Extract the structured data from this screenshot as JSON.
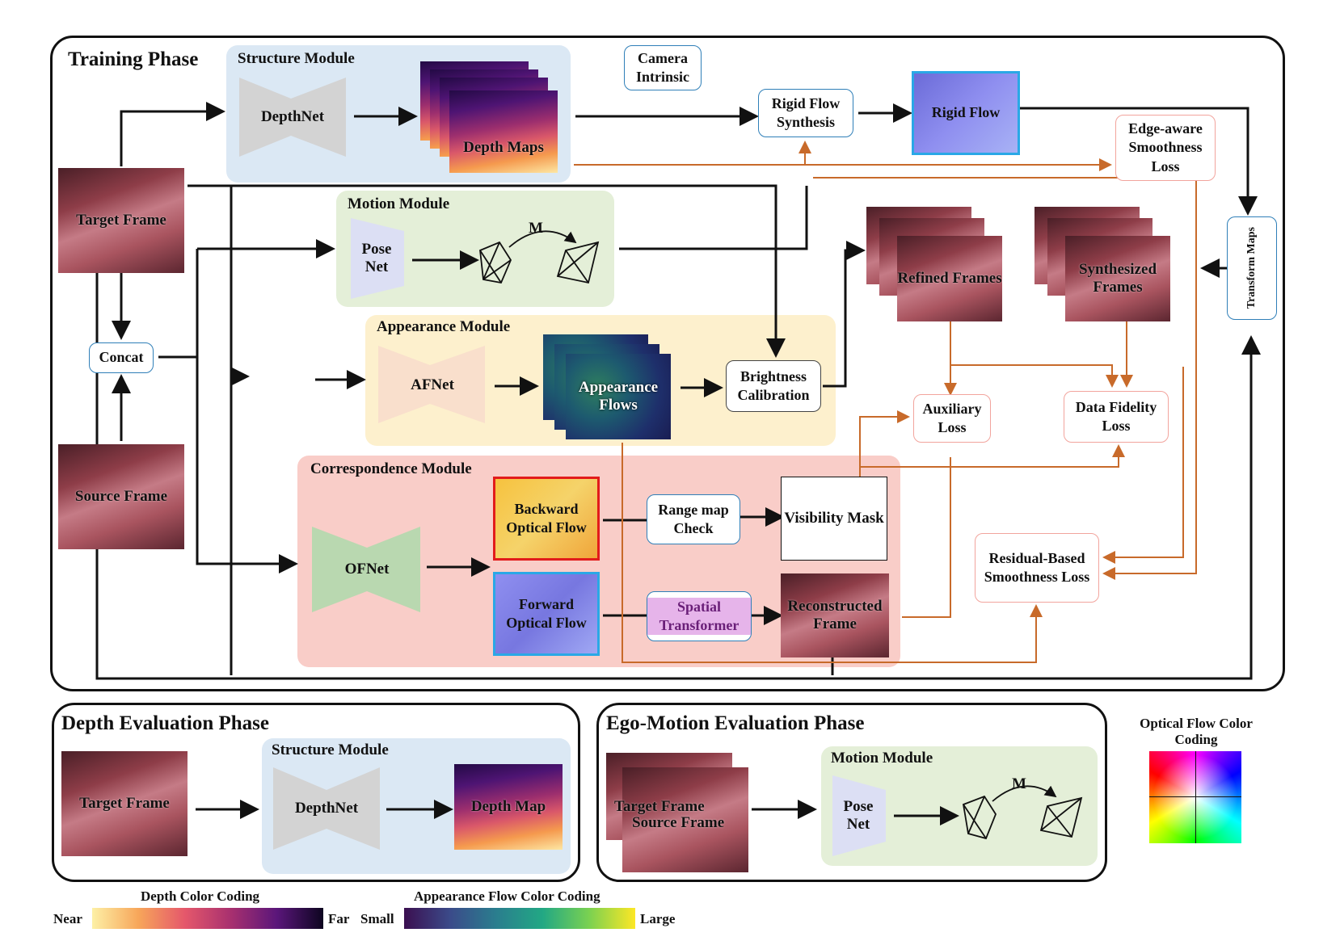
{
  "training": {
    "title": "Training Phase",
    "structure": {
      "title": "Structure Module",
      "net": "DepthNet",
      "output": "Depth Maps"
    },
    "camera": "Camera Intrinsic",
    "rigid_synth": "Rigid Flow Synthesis",
    "rigid_flow": "Rigid Flow",
    "edge_loss": "Edge-aware Smoothness Loss",
    "target": "Target Frame",
    "source": "Source Frame",
    "concat1": "Concat",
    "motion": {
      "title": "Motion Module",
      "net": "Pose Net",
      "m": "M"
    },
    "refined": "Refined Frames",
    "synth": "Synthesized Frames",
    "transform": "Transform Maps",
    "concat2": "Concat",
    "appearance": {
      "title": "Appearance Module",
      "net": "AFNet",
      "output": "Appearance Flows"
    },
    "brightness": "Brightness Calibration",
    "aux_loss": "Auxiliary Loss",
    "fidelity_loss": "Data Fidelity Loss",
    "correspondence": {
      "title": "Correspondence Module",
      "net": "OFNet",
      "backward": "Backward Optical Flow",
      "forward": "Forward Optical Flow",
      "range": "Range map Check",
      "visibility": "Visibility Mask",
      "spatial": "Spatial Transformer",
      "recon": "Reconstructed Frame"
    },
    "residual_loss": "Residual-Based Smoothness Loss"
  },
  "depth_eval": {
    "title": "Depth Evaluation Phase",
    "input": "Target Frame",
    "module": "Structure Module",
    "net": "DepthNet",
    "output": "Depth Map"
  },
  "ego_eval": {
    "title": "Ego-Motion Evaluation Phase",
    "input1": "Target Frame",
    "input2": "Source Frame",
    "module": "Motion Module",
    "net": "Pose Net",
    "m": "M"
  },
  "legend": {
    "of_title": "Optical Flow Color Coding",
    "depth_title": "Depth Color Coding",
    "depth_near": "Near",
    "depth_far": "Far",
    "af_title": "Appearance Flow Color Coding",
    "af_small": "Small",
    "af_large": "Large"
  },
  "colors": {
    "black_arrow": "#111111",
    "orange_arrow": "#c86a2a",
    "blue_border": "#2f7fb8",
    "loss_border": "#f2a49d"
  }
}
